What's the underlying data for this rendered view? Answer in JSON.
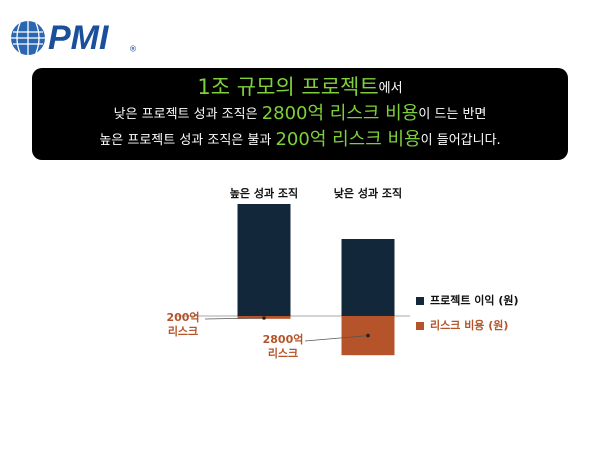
{
  "logo": {
    "name": "PMI",
    "mark": "®"
  },
  "banner": {
    "lines": [
      [
        {
          "text": "1조 규모의 프로젝트",
          "highlight": true
        },
        {
          "text": "에서",
          "highlight": false
        }
      ],
      [
        {
          "text": "낮은 프로젝트 성과 조직은 ",
          "highlight": false
        },
        {
          "text": "2800억 리스크 비용",
          "highlight": true
        },
        {
          "text": "이 드는 반면",
          "highlight": false
        }
      ],
      [
        {
          "text": "높은 프로젝트 성과 조직은 불과 ",
          "highlight": false
        },
        {
          "text": "200억 리스크 비용",
          "highlight": true
        },
        {
          "text": "이 들어갑니다.",
          "highlight": false
        }
      ]
    ]
  },
  "chart_data": {
    "type": "bar",
    "categories": [
      "높은 성과 조직",
      "낮은 성과 조직"
    ],
    "series": [
      {
        "name": "프로젝트 이익 (원)",
        "color": "#13273a",
        "values": [
          8000,
          5500
        ]
      },
      {
        "name": "리스크 비용 (원)",
        "color": "#b5542a",
        "values": [
          -200,
          -2800
        ],
        "value_labels": [
          "200억\n리스크",
          "2800억\n리스크"
        ]
      }
    ],
    "ylim": [
      -3500,
      9000
    ],
    "legend": "right"
  }
}
